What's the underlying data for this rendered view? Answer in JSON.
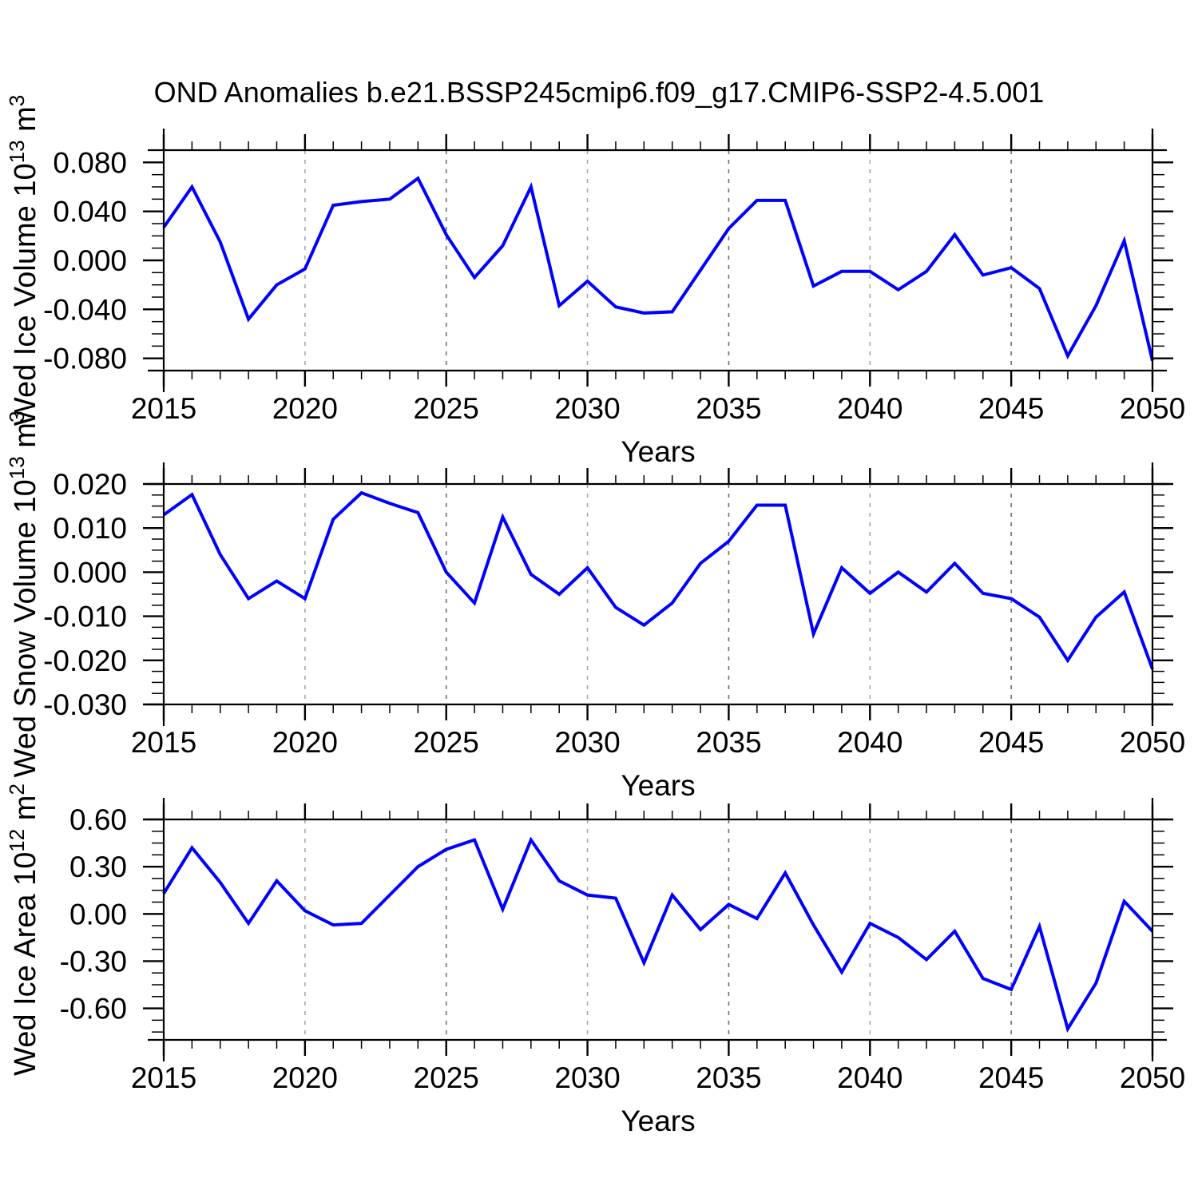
{
  "title": "OND Anomalies b.e21.BSSP245cmip6.f09_g17.CMIP6-SSP2-4.5.001",
  "xlabel": "Years",
  "years": [
    2015,
    2016,
    2017,
    2018,
    2019,
    2020,
    2021,
    2022,
    2023,
    2024,
    2025,
    2026,
    2027,
    2028,
    2029,
    2030,
    2031,
    2032,
    2033,
    2034,
    2035,
    2036,
    2037,
    2038,
    2039,
    2040,
    2041,
    2042,
    2043,
    2044,
    2045,
    2046,
    2047,
    2048,
    2049,
    2050
  ],
  "x_axis": {
    "major_tick_years": [
      2015,
      2020,
      2025,
      2030,
      2035,
      2040,
      2045,
      2050
    ],
    "major_tick_labels": [
      "2015",
      "2020",
      "2025",
      "2030",
      "2035",
      "2040",
      "2045",
      "2050"
    ],
    "minor_tick_step": 1,
    "grid_years": [
      2020,
      2025,
      2030,
      2035,
      2040,
      2045
    ]
  },
  "colors": {
    "line": "#0000ff",
    "axis": "#000000",
    "grid_light": "#a8a8a8",
    "grid_dark": "#6e6e6e",
    "text": "#000000",
    "background": "#ffffff"
  },
  "chart_data": [
    {
      "type": "line",
      "name": "wed-ice-volume",
      "ylabel": "Wed Ice Volume 10^13 m^3",
      "ylabel_parts": [
        [
          "t",
          "Wed Ice Volume 10"
        ],
        [
          "s",
          "13"
        ],
        [
          "t",
          " m"
        ],
        [
          "s",
          "3"
        ]
      ],
      "xlabel": "Years",
      "ylim": [
        -0.09,
        0.09
      ],
      "ytick_values": [
        0.08,
        0.04,
        0.0,
        -0.04,
        -0.08
      ],
      "ytick_labels": [
        "0.080",
        "0.040",
        "0.000",
        "-0.040",
        "-0.080"
      ],
      "yminor_step": 0.01,
      "grid": "x-dashed",
      "values": [
        0.027,
        0.06,
        0.015,
        -0.048,
        -0.02,
        -0.007,
        0.045,
        0.048,
        0.05,
        0.067,
        0.021,
        -0.014,
        0.012,
        0.06,
        -0.037,
        -0.017,
        -0.038,
        -0.043,
        -0.042,
        -0.008,
        0.026,
        0.049,
        0.049,
        -0.021,
        -0.009,
        -0.009,
        -0.024,
        -0.009,
        0.021,
        -0.012,
        -0.006,
        -0.023,
        -0.078,
        -0.037,
        0.016,
        -0.082
      ]
    },
    {
      "type": "line",
      "name": "wed-snow-volume",
      "ylabel": "Wed Snow Volume 10^13 m^3",
      "ylabel_parts": [
        [
          "t",
          "Wed Snow Volume 10"
        ],
        [
          "s",
          "13"
        ],
        [
          "t",
          " m"
        ],
        [
          "s",
          "3"
        ]
      ],
      "xlabel": "Years",
      "ylim": [
        -0.03,
        0.02
      ],
      "ytick_values": [
        0.02,
        0.01,
        0.0,
        -0.01,
        -0.02,
        -0.03
      ],
      "ytick_labels": [
        "0.020",
        "0.010",
        "0.000",
        "-0.010",
        "-0.020",
        "-0.030"
      ],
      "yminor_step": 0.0025,
      "grid": "x-dashed",
      "values": [
        0.013,
        0.0176,
        0.004,
        -0.006,
        -0.002,
        -0.006,
        0.012,
        0.018,
        0.0156,
        0.0135,
        0.0,
        -0.007,
        0.0125,
        -0.0005,
        -0.005,
        0.001,
        -0.008,
        -0.012,
        -0.007,
        0.002,
        0.007,
        0.0152,
        0.0152,
        -0.014,
        0.001,
        -0.0048,
        0.0,
        -0.0045,
        0.002,
        -0.0048,
        -0.006,
        -0.0102,
        -0.02,
        -0.0102,
        -0.0045,
        -0.022
      ]
    },
    {
      "type": "line",
      "name": "wed-ice-area",
      "ylabel": "Wed Ice Area 10^12 m^2",
      "ylabel_parts": [
        [
          "t",
          "Wed Ice Area 10"
        ],
        [
          "s",
          "12"
        ],
        [
          "t",
          " m"
        ],
        [
          "s",
          "2"
        ]
      ],
      "xlabel": "Years",
      "ylim": [
        -0.8,
        0.6
      ],
      "ytick_values": [
        0.6,
        0.3,
        0.0,
        -0.3,
        -0.6
      ],
      "ytick_labels": [
        "0.60",
        "0.30",
        "0.00",
        "-0.30",
        "-0.60"
      ],
      "yminor_step": 0.075,
      "grid": "x-dashed",
      "values": [
        0.13,
        0.42,
        0.2,
        -0.06,
        0.21,
        0.02,
        -0.07,
        -0.06,
        0.12,
        0.3,
        0.41,
        0.47,
        0.03,
        0.47,
        0.21,
        0.12,
        0.1,
        -0.31,
        0.12,
        -0.1,
        0.06,
        -0.03,
        0.26,
        -0.07,
        -0.37,
        -0.06,
        -0.15,
        -0.29,
        -0.11,
        -0.41,
        -0.48,
        -0.08,
        -0.73,
        -0.44,
        0.08,
        -0.11
      ]
    }
  ]
}
